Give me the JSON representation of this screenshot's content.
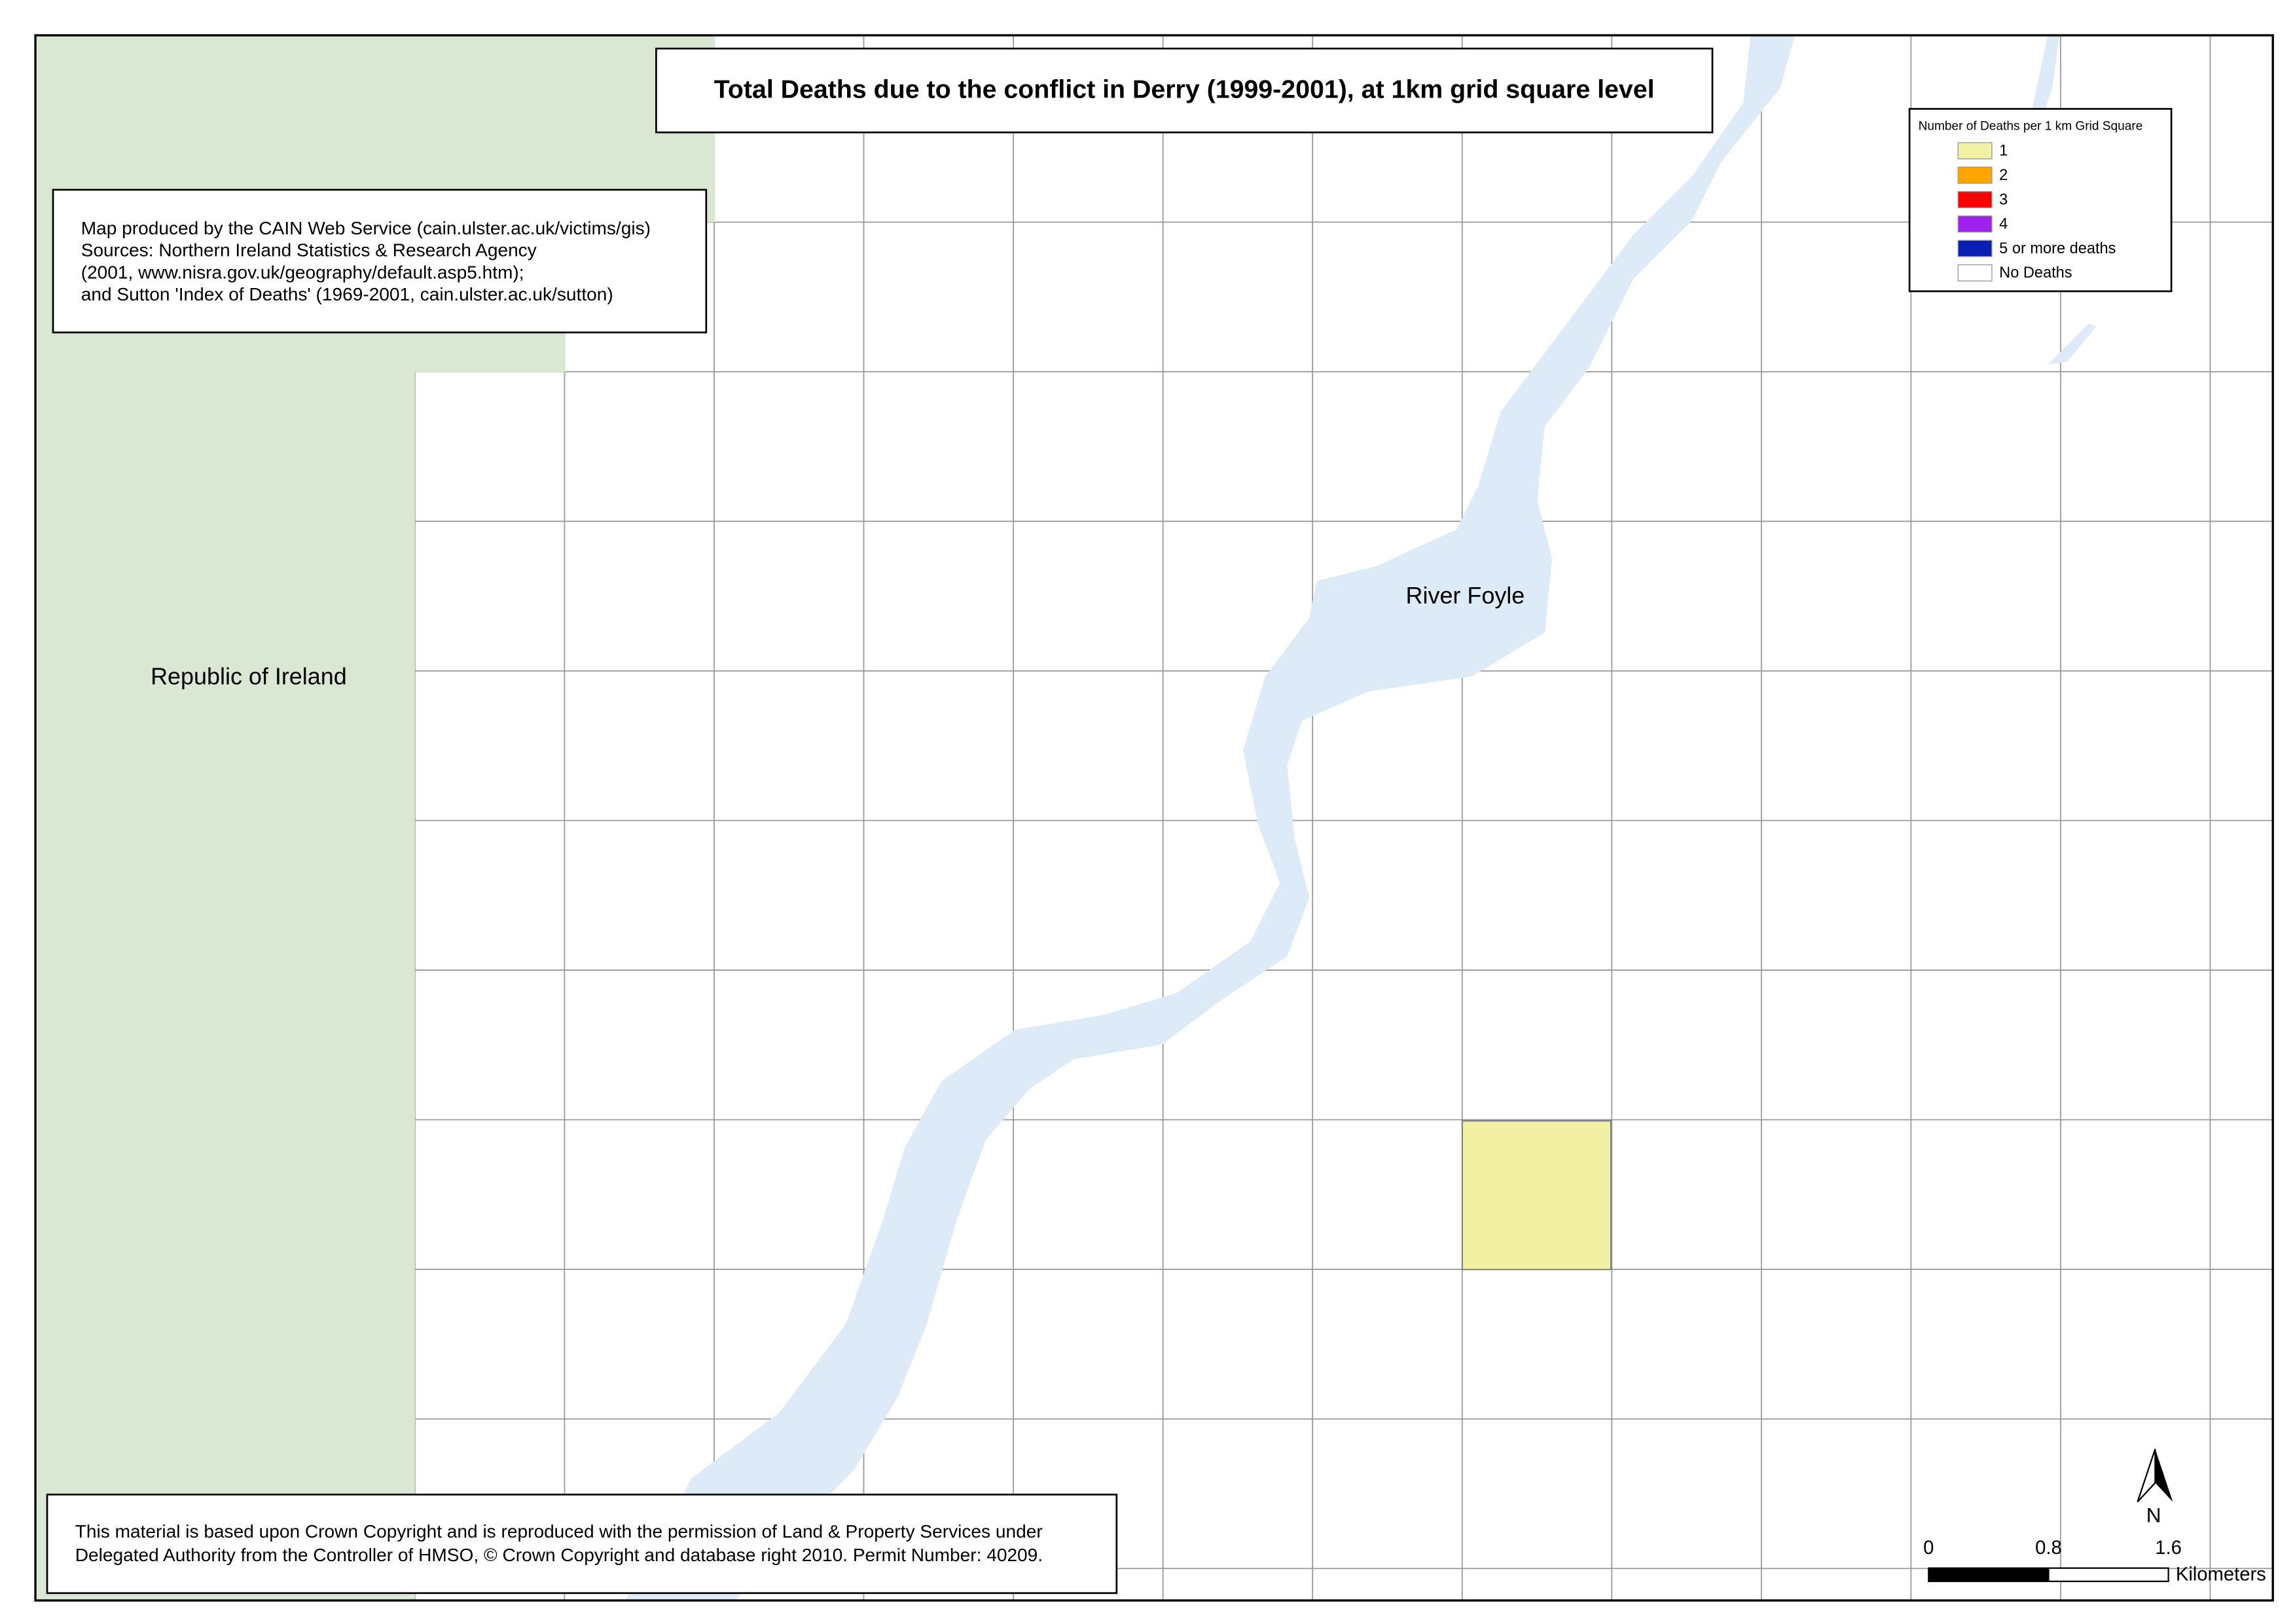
{
  "title": "Total Deaths due to the conflict in Derry (1999-2001), at 1km grid square level",
  "sources": [
    "Map produced by the CAIN Web Service (cain.ulster.ac.uk/victims/gis)",
    "Sources: Northern Ireland Statistics & Research Agency",
    "(2001, www.nisra.gov.uk/geography/default.asp5.htm);",
    "and Sutton 'Index of Deaths' (1969-2001, cain.ulster.ac.uk/sutton)"
  ],
  "copyright": [
    "This material is based upon Crown Copyright and is reproduced with the permission of Land & Property Services under",
    "Delegated Authority from the Controller of HMSO, © Crown Copyright and database right 2010. Permit Number: 40209."
  ],
  "labels": {
    "country": "Republic of Ireland",
    "river": "River Foyle"
  },
  "legend": {
    "title": "Number of Deaths per 1 km Grid Square",
    "items": [
      {
        "label": "1",
        "color": "#f2f0a2"
      },
      {
        "label": "2",
        "color": "#ffa500"
      },
      {
        "label": "3",
        "color": "#ff0000"
      },
      {
        "label": "4",
        "color": "#a020f0"
      },
      {
        "label": "5 or more deaths",
        "color": "#0a1eb4"
      },
      {
        "label": "No Deaths",
        "color": "#ffffff"
      }
    ]
  },
  "scale_bar": {
    "ticks": [
      0,
      0.8,
      1.6
    ],
    "unit": "Kilometers"
  },
  "north_label": "N"
}
